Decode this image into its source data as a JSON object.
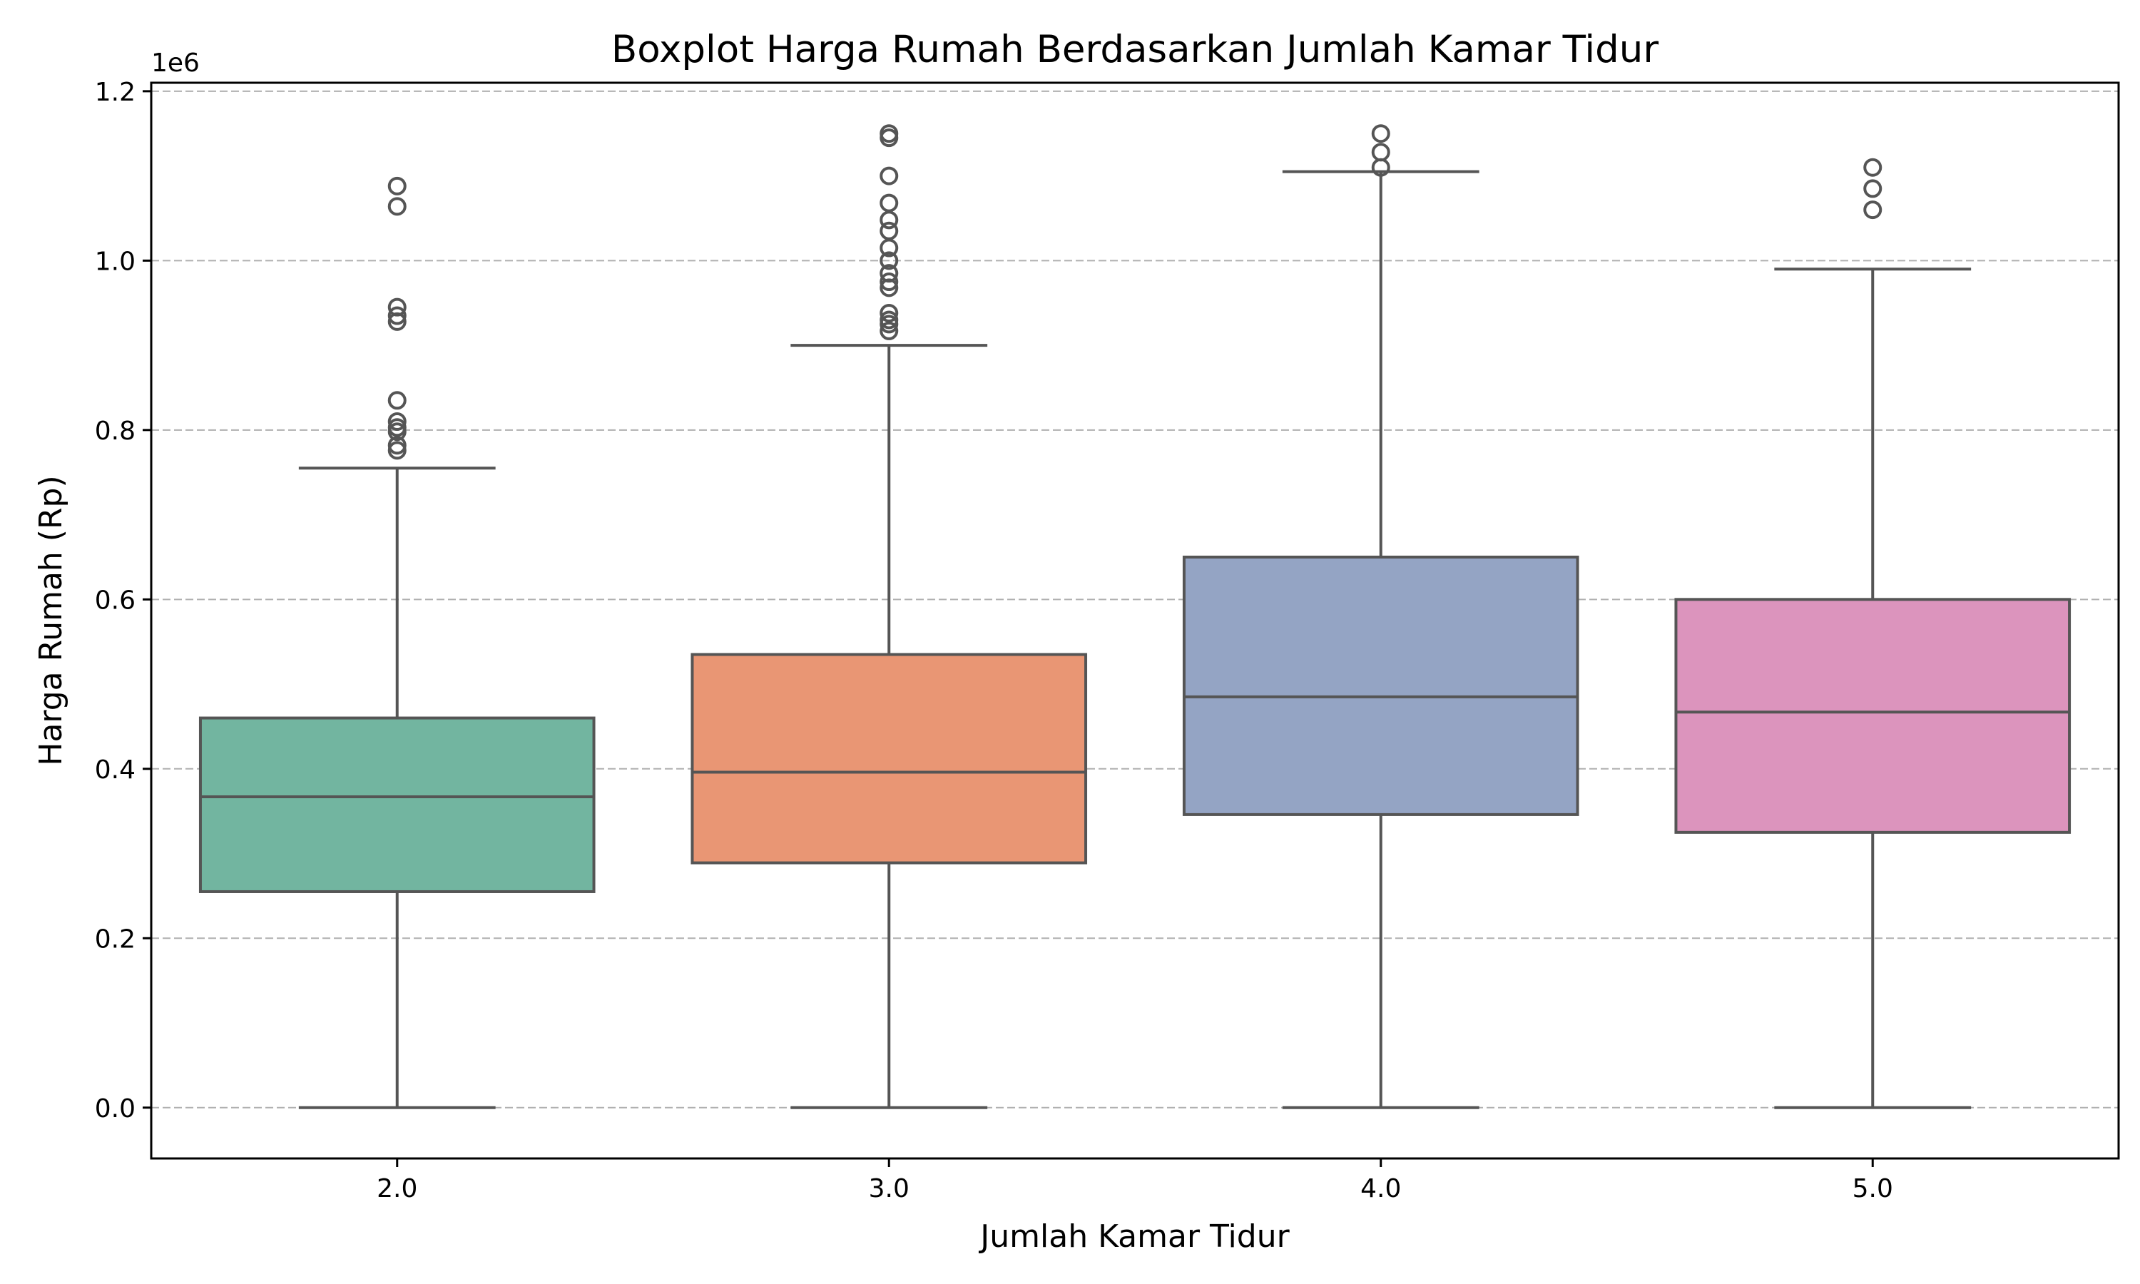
{
  "chart_data": {
    "type": "boxplot",
    "title": "Boxplot Harga Rumah Berdasarkan Jumlah Kamar Tidur",
    "xlabel": "Jumlah Kamar Tidur",
    "ylabel": "Harga Rumah (Rp)",
    "y_offset_label": "1e6",
    "ylim": [
      -60000,
      1210000
    ],
    "y_ticks": [
      0.0,
      0.2,
      0.4,
      0.6,
      0.8,
      1.0,
      1.2
    ],
    "y_tick_labels": [
      "0.0",
      "0.2",
      "0.4",
      "0.6",
      "0.8",
      "1.0",
      "1.2"
    ],
    "grid": "horizontal-dashed",
    "categories": [
      "2.0",
      "3.0",
      "4.0",
      "5.0"
    ],
    "boxes": [
      {
        "category": "2.0",
        "color": "#72b5a0",
        "whisker_low": 0,
        "q1": 255000,
        "median": 367000,
        "q3": 460000,
        "whisker_high": 755000,
        "outliers": [
          1088000,
          1064000,
          945000,
          935000,
          928000,
          835000,
          810000,
          803000,
          798000,
          782000,
          776000
        ]
      },
      {
        "category": "3.0",
        "color": "#e99674",
        "whisker_low": 0,
        "q1": 289000,
        "median": 396000,
        "q3": 535000,
        "whisker_high": 900000,
        "outliers": [
          1150000,
          1145000,
          1100000,
          1068000,
          1048000,
          1035000,
          1015000,
          1000000,
          985000,
          975000,
          968000,
          938000,
          930000,
          925000,
          917000
        ]
      },
      {
        "category": "4.0",
        "color": "#94a4c4",
        "whisker_low": 0,
        "q1": 346000,
        "median": 485000,
        "q3": 650000,
        "whisker_high": 1105000,
        "outliers": [
          1150000,
          1128000,
          1110000
        ]
      },
      {
        "category": "5.0",
        "color": "#dc94bd",
        "whisker_low": 0,
        "q1": 325000,
        "median": 467000,
        "q3": 600000,
        "whisker_high": 990000,
        "outliers": [
          1110000,
          1085000,
          1060000
        ]
      }
    ]
  }
}
